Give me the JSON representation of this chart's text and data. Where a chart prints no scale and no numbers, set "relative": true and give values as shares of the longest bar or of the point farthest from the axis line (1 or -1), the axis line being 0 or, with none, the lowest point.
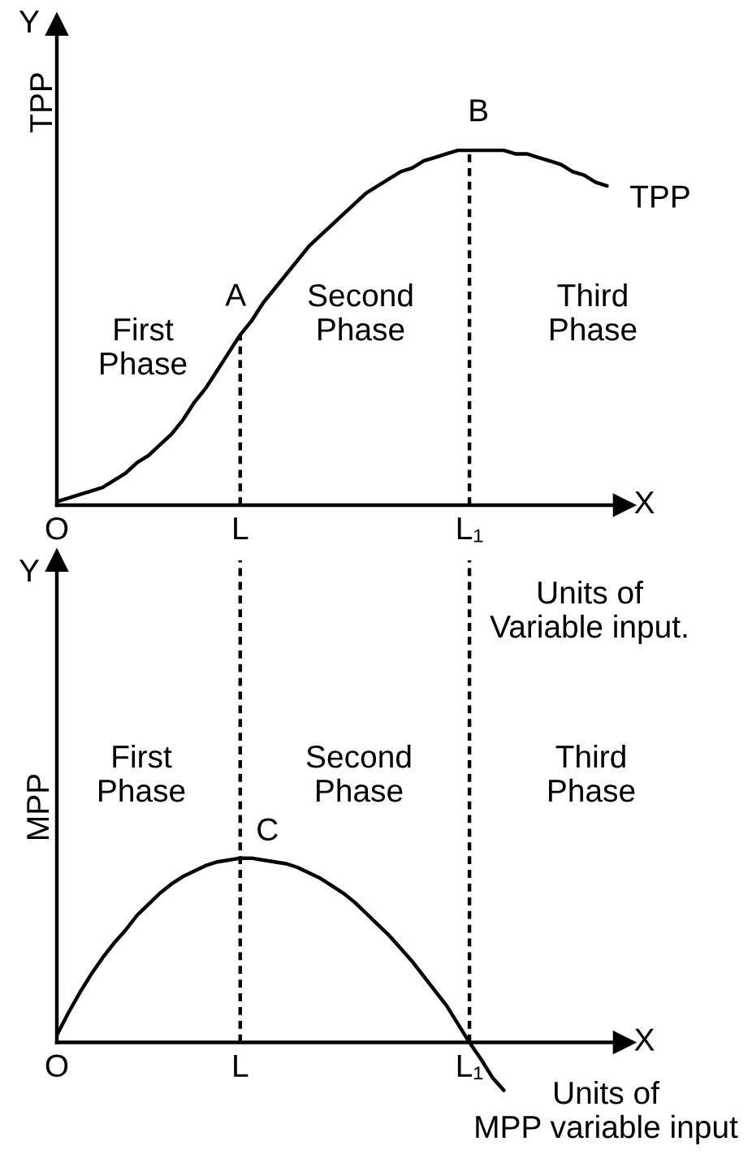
{
  "chart_data": [
    {
      "type": "line",
      "relative": true,
      "line_style": "solid",
      "ylabel": "TPP",
      "xlabel": "X",
      "categories": [
        "O",
        null,
        null,
        null,
        null,
        null,
        null,
        null,
        null,
        null,
        null,
        null,
        null,
        null,
        null,
        null,
        "L",
        null,
        null,
        null,
        null,
        null,
        null,
        null,
        null,
        null,
        null,
        null,
        null,
        null,
        null,
        null,
        null,
        null,
        null,
        null,
        "L₁",
        null,
        null,
        null,
        null,
        null,
        null,
        null,
        null,
        null,
        null,
        null,
        null
      ],
      "series": [
        {
          "name": "TPP",
          "color": "#000000",
          "values": [
            0.01,
            0.02,
            0.03,
            0.04,
            0.05,
            0.07,
            0.09,
            0.12,
            0.14,
            0.17,
            0.2,
            0.24,
            0.29,
            0.33,
            0.38,
            0.43,
            0.48,
            0.52,
            0.57,
            0.61,
            0.65,
            0.69,
            0.73,
            0.76,
            0.79,
            0.82,
            0.85,
            0.88,
            0.9,
            0.92,
            0.94,
            0.95,
            0.97,
            0.98,
            0.99,
            1.0,
            1.0,
            1.0,
            1.0,
            1.0,
            0.99,
            0.99,
            0.98,
            0.97,
            0.96,
            0.94,
            0.93,
            0.91,
            0.9
          ]
        }
      ],
      "ref_lines": [
        {
          "axis": "x",
          "value": "L",
          "color": "#000000",
          "line_style": "dashed"
        },
        {
          "axis": "x",
          "value": "L₁",
          "color": "#000000",
          "line_style": "dashed"
        }
      ],
      "annotations": [
        "Y",
        "First\nPhase",
        "Second\nPhase",
        "Third\nPhase",
        "Units of\nVariable input.",
        {
          "text": "A",
          "x": "L",
          "y": 0.48
        },
        {
          "text": "B",
          "x": "L₁",
          "y": 1.0
        }
      ]
    },
    {
      "type": "line",
      "relative": true,
      "line_style": "solid",
      "ylabel": "MPP",
      "xlabel": "X",
      "categories": [
        "O",
        null,
        null,
        null,
        null,
        null,
        null,
        null,
        null,
        null,
        null,
        null,
        null,
        null,
        null,
        null,
        "L",
        null,
        null,
        null,
        null,
        null,
        null,
        null,
        null,
        null,
        null,
        null,
        null,
        null,
        null,
        null,
        null,
        null,
        null,
        null,
        "L₁",
        null,
        null,
        null,
        null,
        null,
        null,
        null,
        null,
        null,
        null,
        null,
        null
      ],
      "series": [
        {
          "color": "#000000",
          "values": [
            0.04,
            0.16,
            0.27,
            0.37,
            0.46,
            0.54,
            0.61,
            0.69,
            0.75,
            0.81,
            0.86,
            0.9,
            0.93,
            0.96,
            0.98,
            0.99,
            1.0,
            1.0,
            0.99,
            0.98,
            0.97,
            0.95,
            0.92,
            0.89,
            0.85,
            0.81,
            0.76,
            0.7,
            0.64,
            0.58,
            0.51,
            0.44,
            0.36,
            0.28,
            0.2,
            0.1,
            0.0,
            -0.09,
            -0.19,
            -0.26,
            null,
            null,
            null,
            null,
            null,
            null,
            null,
            null,
            null
          ]
        }
      ],
      "ref_lines": [
        {
          "axis": "x",
          "value": "L",
          "color": "#000000",
          "line_style": "dashed"
        },
        {
          "axis": "x",
          "value": "L₁",
          "color": "#000000",
          "line_style": "dashed"
        }
      ],
      "annotations": [
        "Y",
        "First\nPhase",
        "Second\nPhase",
        "Third\nPhase",
        "Units of\nMPP variable input",
        {
          "text": "C",
          "x": "L",
          "y": 1.0
        }
      ]
    }
  ]
}
